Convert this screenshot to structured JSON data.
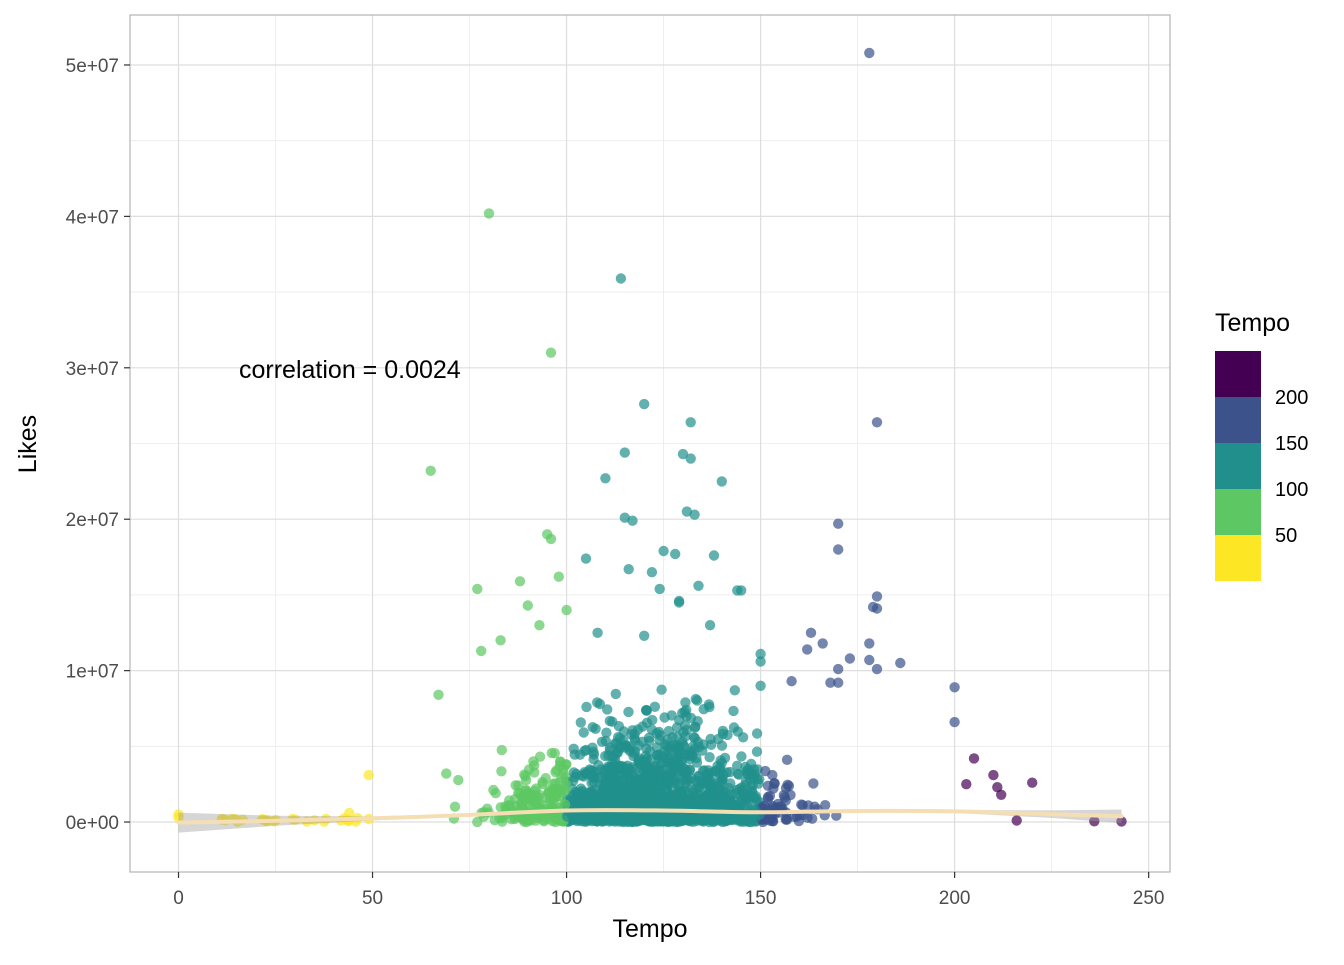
{
  "chart_data": {
    "type": "scatter",
    "title": "",
    "xlabel": "Tempo",
    "ylabel": "Likes",
    "xlim": [
      -12.5,
      255.5
    ],
    "ylim": [
      -3300000,
      53300000
    ],
    "x_ticks": [
      0,
      50,
      100,
      150,
      200,
      250
    ],
    "x_tick_labels": [
      "0",
      "50",
      "100",
      "150",
      "200",
      "250"
    ],
    "y_ticks": [
      0,
      10000000,
      20000000,
      30000000,
      40000000,
      50000000
    ],
    "y_tick_labels": [
      "0e+00",
      "1e+07",
      "2e+07",
      "3e+07",
      "4e+07",
      "5e+07"
    ],
    "grid": true,
    "annotation": {
      "text": "correlation =  0.0024",
      "x": 15,
      "y": 29600000
    },
    "legend": {
      "title": "Tempo",
      "position": "right",
      "type": "binned",
      "labels": [
        "200",
        "150",
        "100",
        "50"
      ],
      "colors": [
        "#440154",
        "#3B528B",
        "#21908C",
        "#5DC863",
        "#FDE725"
      ]
    },
    "bins": [
      {
        "max": 50,
        "color": "#FDE725"
      },
      {
        "max": 100,
        "color": "#5DC863"
      },
      {
        "max": 150,
        "color": "#21908C"
      },
      {
        "max": 200,
        "color": "#3B528B"
      },
      {
        "max": 9999,
        "color": "#440154"
      }
    ],
    "point_alpha": 0.7,
    "outliers": [
      [
        178,
        50800000
      ],
      [
        80,
        40200000
      ],
      [
        114,
        35900000
      ],
      [
        96,
        31000000
      ],
      [
        120,
        27600000
      ],
      [
        180,
        26400000
      ],
      [
        132,
        26400000
      ],
      [
        65,
        23200000
      ],
      [
        115,
        24400000
      ],
      [
        130,
        24300000
      ],
      [
        132,
        24000000
      ],
      [
        110,
        22700000
      ],
      [
        140,
        22500000
      ],
      [
        131,
        20500000
      ],
      [
        133,
        20300000
      ],
      [
        115,
        20100000
      ],
      [
        117,
        19900000
      ],
      [
        170,
        19700000
      ],
      [
        95,
        19000000
      ],
      [
        96,
        18700000
      ],
      [
        170,
        18000000
      ],
      [
        125,
        17900000
      ],
      [
        128,
        17700000
      ],
      [
        138,
        17600000
      ],
      [
        105,
        17400000
      ],
      [
        116,
        16700000
      ],
      [
        122,
        16500000
      ],
      [
        98,
        16200000
      ],
      [
        88,
        15900000
      ],
      [
        134,
        15600000
      ],
      [
        77,
        15400000
      ],
      [
        124,
        15400000
      ],
      [
        144,
        15300000
      ],
      [
        145,
        15300000
      ],
      [
        180,
        14900000
      ],
      [
        179,
        14200000
      ],
      [
        180,
        14100000
      ],
      [
        129,
        14600000
      ],
      [
        129,
        14500000
      ],
      [
        90,
        14300000
      ],
      [
        100,
        14000000
      ],
      [
        93,
        13000000
      ],
      [
        173,
        10800000
      ],
      [
        166,
        11800000
      ],
      [
        163,
        12500000
      ],
      [
        178,
        11800000
      ],
      [
        178,
        10700000
      ],
      [
        180,
        10100000
      ],
      [
        186,
        10500000
      ],
      [
        200,
        8900000
      ],
      [
        200,
        6600000
      ],
      [
        162,
        11400000
      ],
      [
        150,
        11100000
      ],
      [
        150,
        10600000
      ],
      [
        170,
        10100000
      ],
      [
        170,
        9200000
      ],
      [
        158,
        9300000
      ],
      [
        168,
        9200000
      ],
      [
        150,
        9000000
      ],
      [
        83,
        12000000
      ],
      [
        120,
        12300000
      ],
      [
        108,
        12500000
      ],
      [
        137,
        13000000
      ],
      [
        78,
        11300000
      ],
      [
        67,
        8400000
      ],
      [
        69,
        3200000
      ],
      [
        49,
        3100000
      ],
      [
        44,
        600000
      ],
      [
        38,
        200000
      ],
      [
        0,
        500000
      ],
      [
        0,
        300000
      ],
      [
        236,
        50000
      ],
      [
        243,
        40000
      ],
      [
        220,
        2600000
      ],
      [
        210,
        3100000
      ],
      [
        205,
        4200000
      ],
      [
        203,
        2500000
      ],
      [
        211,
        2300000
      ],
      [
        212,
        1800000
      ],
      [
        216,
        100000
      ]
    ],
    "smooth_line": [
      [
        0,
        -40000
      ],
      [
        25,
        80000
      ],
      [
        50,
        240000
      ],
      [
        75,
        470000
      ],
      [
        100,
        760000
      ],
      [
        125,
        760000
      ],
      [
        150,
        640000
      ],
      [
        175,
        730000
      ],
      [
        200,
        700000
      ],
      [
        225,
        520000
      ],
      [
        243,
        380000
      ]
    ],
    "smooth_band": [
      [
        0,
        -700000,
        620000
      ],
      [
        25,
        -250000,
        410000
      ],
      [
        50,
        110000,
        370000
      ],
      [
        75,
        390000,
        550000
      ],
      [
        100,
        690000,
        830000
      ],
      [
        125,
        700000,
        820000
      ],
      [
        150,
        570000,
        710000
      ],
      [
        175,
        660000,
        800000
      ],
      [
        200,
        600000,
        800000
      ],
      [
        225,
        270000,
        770000
      ],
      [
        243,
        -70000,
        830000
      ]
    ]
  }
}
